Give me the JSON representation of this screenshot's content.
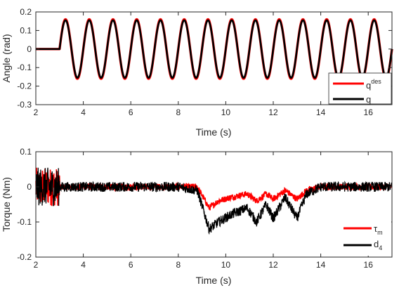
{
  "chart_data": [
    {
      "type": "line",
      "xlabel": "Time (s)",
      "ylabel": "Angle (rad)",
      "xlim": [
        2,
        17
      ],
      "ylim": [
        -0.3,
        0.2
      ],
      "xticks": [
        2,
        4,
        6,
        8,
        10,
        12,
        14,
        16
      ],
      "yticks": [
        -0.3,
        -0.2,
        -0.1,
        0,
        0.1,
        0.2
      ],
      "xtick_labels": [
        "2",
        "4",
        "6",
        "8",
        "10",
        "12",
        "14",
        "16"
      ],
      "ytick_labels": [
        "-0.3",
        "-0.2",
        "-0.1",
        "0",
        "0.1",
        "0.2"
      ],
      "grid": false,
      "legend_position": "bottom-right",
      "series": [
        {
          "symbol": "q",
          "superscript": "des",
          "color": "#ff0000",
          "description": "zero until t=3.0 s, then sinusoid of amplitude 0.16 rad and period 1.0 s",
          "x": [
            2.0,
            3.0,
            3.25,
            3.5,
            3.75,
            4.0,
            4.25,
            4.5,
            4.75,
            5.0,
            6.0,
            7.0,
            8.0,
            9.0,
            10.0,
            11.0,
            12.0,
            13.0,
            14.0,
            15.0,
            16.0,
            17.0
          ],
          "y": [
            0,
            0,
            0.16,
            0,
            -0.16,
            0,
            0.16,
            0,
            -0.16,
            0,
            0,
            0,
            0,
            0,
            0,
            0,
            0,
            0,
            0,
            0,
            0,
            0
          ]
        },
        {
          "symbol": "q",
          "superscript": "",
          "color": "#000000",
          "description": "tracks q_des closely",
          "x": [
            2.0,
            3.0,
            3.25,
            3.5,
            3.75,
            4.0,
            4.25,
            4.5,
            4.75,
            5.0,
            6.0,
            7.0,
            8.0,
            9.0,
            10.0,
            11.0,
            12.0,
            13.0,
            14.0,
            15.0,
            16.0,
            17.0
          ],
          "y": [
            0,
            0,
            0.155,
            0,
            -0.155,
            0,
            0.155,
            0,
            -0.155,
            0,
            0,
            0,
            0,
            0,
            0,
            0,
            0,
            0,
            0,
            0,
            0,
            0
          ]
        }
      ]
    },
    {
      "type": "line",
      "xlabel": "Time (s)",
      "ylabel": "Torque (Nm)",
      "xlim": [
        2,
        17
      ],
      "ylim": [
        -0.2,
        0.1
      ],
      "xticks": [
        2,
        4,
        6,
        8,
        10,
        12,
        14,
        16
      ],
      "yticks": [
        -0.2,
        -0.1,
        0,
        0.1
      ],
      "xtick_labels": [
        "2",
        "4",
        "6",
        "8",
        "10",
        "12",
        "14",
        "16"
      ],
      "ytick_labels": [
        "-0.2",
        "-0.1",
        "0",
        "0.1"
      ],
      "grid": false,
      "legend_position": "bottom-right",
      "series": [
        {
          "symbol": "τ",
          "subscript": "m",
          "color": "#ff0000",
          "x": [
            2.0,
            3.0,
            4.0,
            5.0,
            6.0,
            7.0,
            8.0,
            8.8,
            9.3,
            9.7,
            10.2,
            10.9,
            11.3,
            11.7,
            12.0,
            12.5,
            13.0,
            13.4,
            14.0,
            15.0,
            16.0,
            17.0
          ],
          "y": [
            0,
            0,
            0,
            0,
            0,
            0,
            0,
            0,
            -0.06,
            -0.04,
            -0.03,
            -0.02,
            -0.04,
            -0.02,
            -0.035,
            -0.01,
            -0.035,
            -0.01,
            0,
            0,
            0,
            0
          ]
        },
        {
          "symbol": "d",
          "subscript": "4",
          "color": "#000000",
          "x": [
            2.0,
            3.0,
            4.0,
            5.0,
            6.0,
            7.0,
            8.0,
            8.8,
            9.3,
            9.7,
            10.2,
            10.9,
            11.3,
            11.7,
            12.0,
            12.5,
            13.0,
            13.4,
            14.0,
            15.0,
            16.0,
            17.0
          ],
          "y": [
            0,
            0,
            0,
            0,
            0,
            0,
            0,
            -0.01,
            -0.12,
            -0.1,
            -0.08,
            -0.06,
            -0.1,
            -0.05,
            -0.09,
            -0.03,
            -0.09,
            -0.02,
            0,
            0,
            0,
            0
          ]
        }
      ]
    }
  ]
}
